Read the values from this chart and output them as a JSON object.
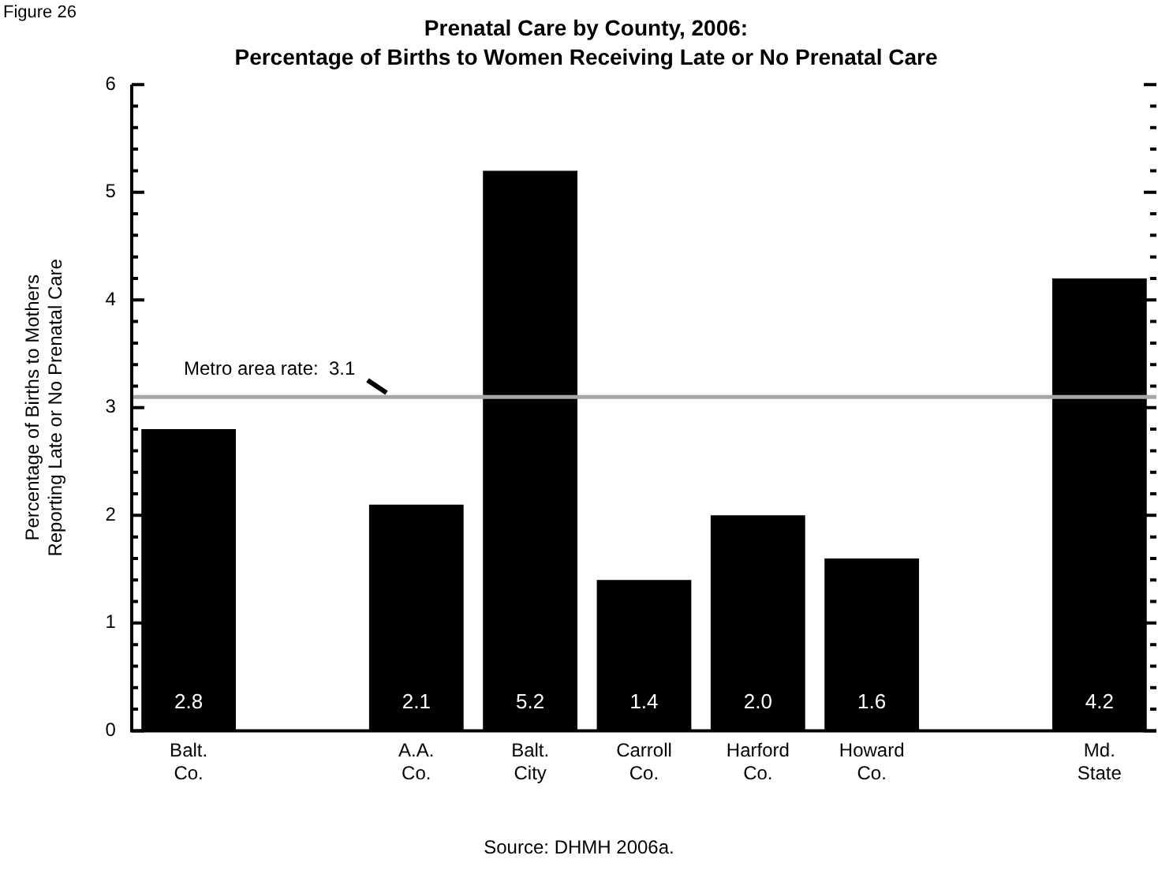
{
  "chart_data": {
    "type": "bar",
    "title": "Prenatal Care by County, 2006:",
    "subtitle": "Percentage of Births to Women Receiving Late or No Prenatal Care",
    "ylabel": "Percentage of Births to Mothers Reporting Late or No Prenatal Care",
    "categories": [
      "Balt. Co.",
      null,
      "A.A. Co.",
      "Balt. City",
      "Carroll Co.",
      "Harford Co.",
      "Howard Co.",
      null,
      "Md. State"
    ],
    "values": [
      2.8,
      null,
      2.1,
      5.2,
      1.4,
      2.0,
      1.6,
      null,
      4.2
    ],
    "value_labels": [
      "2.8",
      null,
      "2.1",
      "5.2",
      "1.4",
      "2.0",
      "1.6",
      null,
      "4.2"
    ],
    "color": "#000000",
    "ylim": [
      0,
      6
    ],
    "yticks": [
      0,
      {
        "value": 0.2,
        "label": null
      },
      {
        "value": 0.4,
        "label": null
      },
      {
        "value": 0.6,
        "label": null
      },
      {
        "value": 0.8,
        "label": null
      },
      1,
      {
        "value": 1.2,
        "label": null
      },
      {
        "value": 1.4,
        "label": null
      },
      {
        "value": 1.6,
        "label": null
      },
      {
        "value": 1.8,
        "label": null
      },
      2,
      {
        "value": 2.2,
        "label": null
      },
      {
        "value": 2.4,
        "label": null
      },
      {
        "value": 2.6,
        "label": null
      },
      {
        "value": 2.8,
        "label": null
      },
      3,
      {
        "value": 3.2,
        "label": null
      },
      {
        "value": 3.4,
        "label": null
      },
      {
        "value": 3.6,
        "label": null
      },
      {
        "value": 3.8,
        "label": null
      },
      4,
      {
        "value": 4.2,
        "label": null
      },
      {
        "value": 4.4,
        "label": null
      },
      {
        "value": 4.6,
        "label": null
      },
      {
        "value": 4.8,
        "label": null
      },
      5,
      {
        "value": 5.2,
        "label": null
      },
      {
        "value": 5.4,
        "label": null
      },
      {
        "value": 5.6,
        "label": null
      },
      {
        "value": 5.8,
        "label": null
      },
      6
    ],
    "ref_lines": [
      {
        "axis": "y",
        "value": 3.1,
        "label": "Metro area rate:  3.1",
        "color": "#a6a6a6"
      }
    ],
    "annotations": [
      "Figure 26",
      "Source: DHMH 2006a."
    ],
    "grid": false,
    "legend": false
  }
}
